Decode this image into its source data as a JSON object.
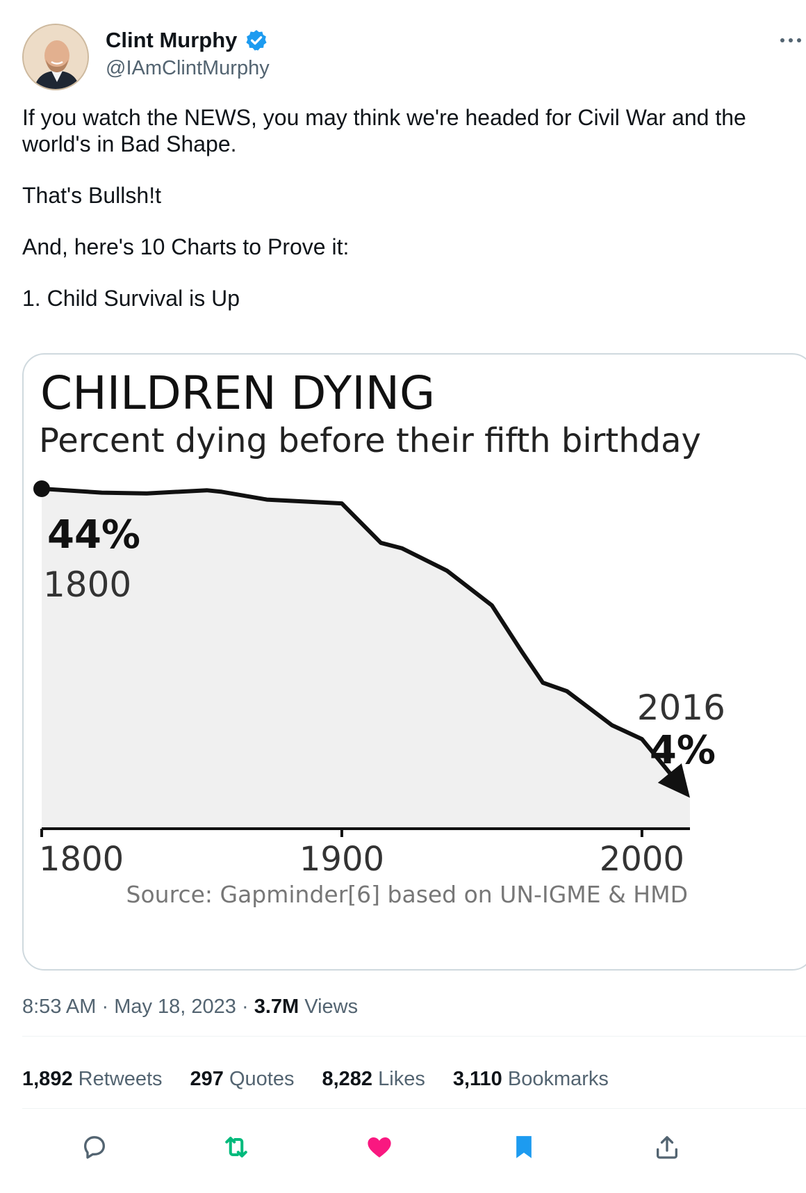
{
  "author": {
    "display_name": "Clint Murphy",
    "handle": "@IAmClintMurphy",
    "verified": true
  },
  "tweet_text": [
    "If you watch the NEWS, you may think we're headed for Civil War and the world's in Bad Shape.",
    "That's Bullsh!t",
    "And, here's 10 Charts to Prove it:",
    "1. Child Survival is Up"
  ],
  "chart_data": {
    "type": "area",
    "title": "CHILDREN DYING",
    "subtitle": "Percent dying before their fifth birthday",
    "xlim": [
      1800,
      2016
    ],
    "ylim": [
      0,
      48
    ],
    "x_ticks": [
      "1800",
      "1900",
      "2000"
    ],
    "x": [
      1800,
      1820,
      1835,
      1855,
      1860,
      1875,
      1900,
      1913,
      1920,
      1935,
      1950,
      1960,
      1967,
      1975,
      1990,
      2000,
      2016
    ],
    "y": [
      44,
      43.5,
      43.4,
      43.8,
      43.6,
      42.6,
      42.1,
      37,
      36.3,
      33.4,
      28.9,
      22.9,
      18.9,
      17.8,
      13.4,
      11.6,
      4
    ],
    "start_label": {
      "value": "44%",
      "year": "1800"
    },
    "end_label": {
      "value": "4%",
      "year": "2016"
    },
    "source": "Source: Gapminder[6] based on UN-IGME & HMD",
    "colors": {
      "line": "#111111",
      "fill": "#f0f0f0"
    }
  },
  "timestamp": {
    "time": "8:53 AM",
    "date": "May 18, 2023",
    "views_count": "3.7M",
    "views_label": "Views"
  },
  "stats": [
    {
      "count": "1,892",
      "label": "Retweets"
    },
    {
      "count": "297",
      "label": "Quotes"
    },
    {
      "count": "8,282",
      "label": "Likes"
    },
    {
      "count": "3,110",
      "label": "Bookmarks"
    }
  ],
  "actions": {
    "reply_icon": "reply-icon",
    "retweet_icon": "retweet-icon",
    "like_icon": "heart-icon",
    "bookmark_icon": "bookmark-icon",
    "share_icon": "share-icon",
    "colors": {
      "retweet": "#00ba7c",
      "like": "#f91880",
      "bookmark": "#1d9bf0",
      "muted": "#536471"
    }
  }
}
